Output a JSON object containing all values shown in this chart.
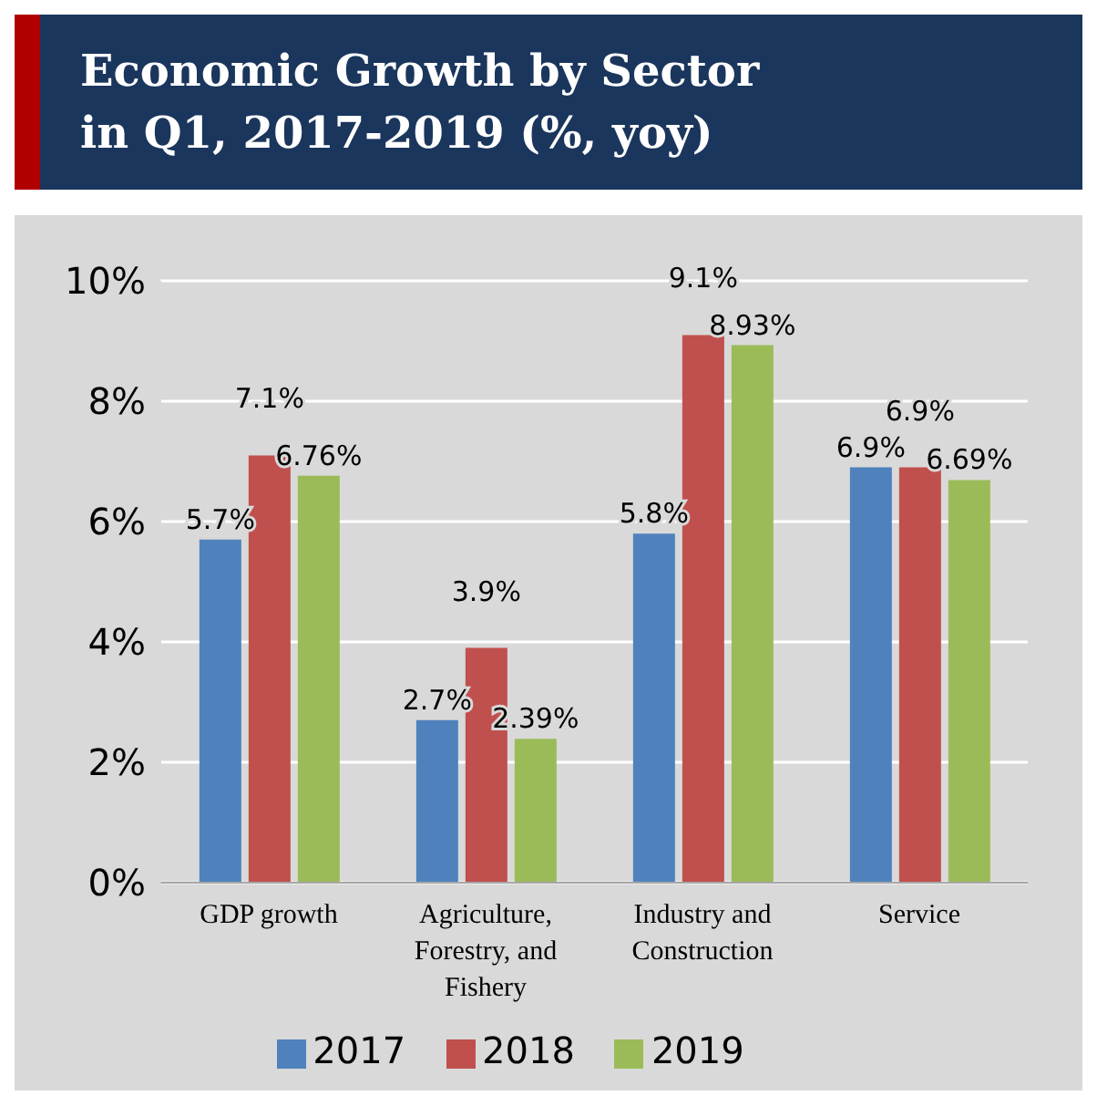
{
  "chart_data": {
    "type": "bar",
    "title": "Economic Growth by Sector\nin Q1, 2017-2019 (%, yoy)",
    "categories": [
      "GDP growth",
      "Agriculture, Forestry, and Fishery",
      "Industry and Construction",
      "Service"
    ],
    "series": [
      {
        "name": "2017",
        "color": "#4f81bd",
        "values": [
          5.7,
          2.7,
          5.8,
          6.9
        ],
        "value_labels": [
          "5.7%",
          "2.7%",
          "5.8%",
          "6.9%"
        ]
      },
      {
        "name": "2018",
        "color": "#c0504d",
        "values": [
          7.1,
          3.9,
          9.1,
          6.9
        ],
        "value_labels": [
          "7.1%",
          "3.9%",
          "9.1%",
          "6.9%"
        ]
      },
      {
        "name": "2019",
        "color": "#9bbb59",
        "values": [
          6.76,
          2.39,
          8.93,
          6.69
        ],
        "value_labels": [
          "6.76%",
          "2.39%",
          "8.93%",
          "6.69%"
        ]
      }
    ],
    "ylim": [
      0,
      10
    ],
    "yticks": [
      {
        "value": 0,
        "label": "0%"
      },
      {
        "value": 2,
        "label": "2%"
      },
      {
        "value": 4,
        "label": "4%"
      },
      {
        "value": 6,
        "label": "6%"
      },
      {
        "value": 8,
        "label": "8%"
      },
      {
        "value": 10,
        "label": "10%"
      }
    ],
    "grid": "y",
    "legend": "bottom"
  }
}
